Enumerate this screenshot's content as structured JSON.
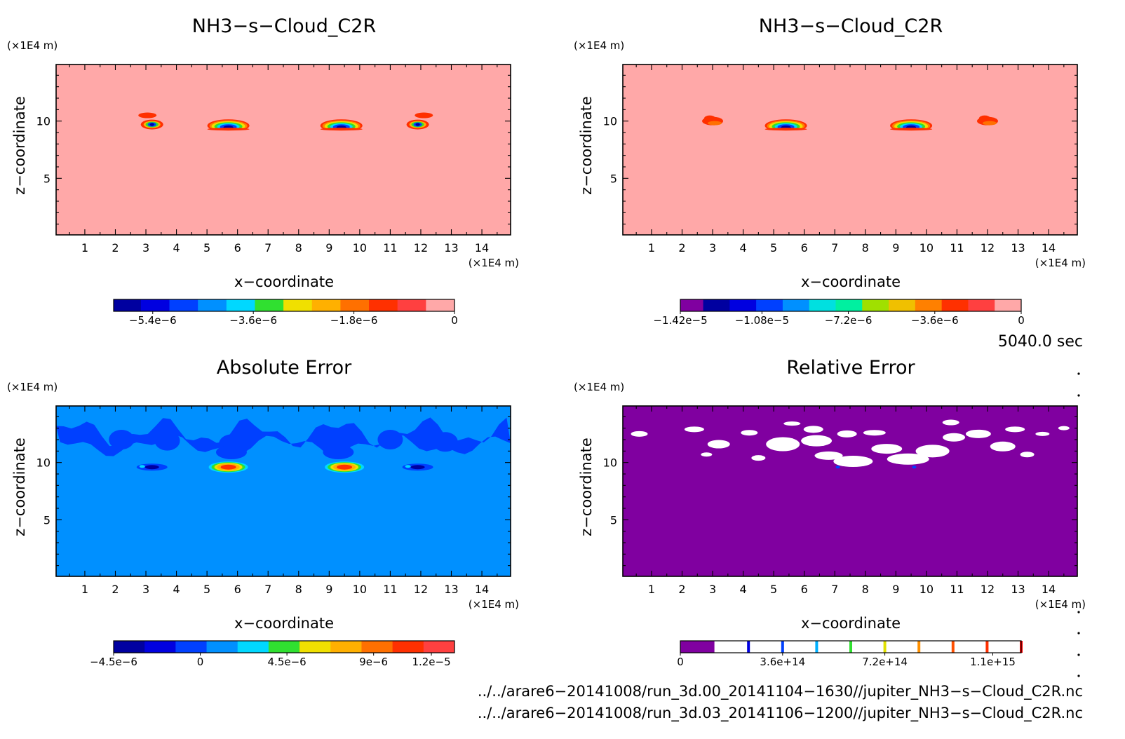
{
  "chart_data": [
    {
      "type": "heatmap",
      "title": "NH3−s−Cloud_C2R",
      "xlabel": "x−coordinate",
      "ylabel": "z−coordinate",
      "x_unit": "(×1E4 m)",
      "y_unit": "(×1E4 m)",
      "xlim": [
        0.06,
        14.94
      ],
      "ylim": [
        0.06,
        14.94
      ],
      "x_ticks": [
        "1",
        "2",
        "3",
        "4",
        "5",
        "6",
        "7",
        "8",
        "9",
        "10",
        "11",
        "12",
        "13",
        "14"
      ],
      "y_ticks": [
        "5",
        "10"
      ],
      "background_color": "#ffa8a8",
      "features": [
        {
          "kind": "mini",
          "x": 3.2,
          "z": 9.7
        },
        {
          "kind": "streak",
          "x": 3.05,
          "z": 10.5
        },
        {
          "kind": "dome",
          "x": 5.7,
          "z": 9.6
        },
        {
          "kind": "dome",
          "x": 9.4,
          "z": 9.6
        },
        {
          "kind": "mini",
          "x": 11.9,
          "z": 9.7
        },
        {
          "kind": "streak",
          "x": 12.1,
          "z": 10.5
        }
      ],
      "colorbar": {
        "colors": [
          "#0000a0",
          "#0000e0",
          "#0040ff",
          "#0090ff",
          "#00d8ff",
          "#30e030",
          "#f0e000",
          "#ffb000",
          "#ff7000",
          "#ff3000",
          "#ff4040",
          "#ffa8a8"
        ],
        "first_fraction": 0.08,
        "tick_labels": [
          "−5.4e−6",
          "−3.6e−6",
          "−1.8e−6",
          "0"
        ],
        "tick_values": [
          -5.4e-06,
          -3.6e-06,
          -1.8e-06,
          0
        ],
        "vmin": -6.1e-06,
        "vmax": 0
      }
    },
    {
      "type": "heatmap",
      "title": "NH3−s−Cloud_C2R",
      "xlabel": "x−coordinate",
      "ylabel": "z−coordinate",
      "x_unit": "(×1E4 m)",
      "y_unit": "(×1E4 m)",
      "xlim": [
        0.06,
        14.94
      ],
      "ylim": [
        0.06,
        14.94
      ],
      "x_ticks": [
        "1",
        "2",
        "3",
        "4",
        "5",
        "6",
        "7",
        "8",
        "9",
        "10",
        "11",
        "12",
        "13",
        "14"
      ],
      "y_ticks": [
        "5",
        "10"
      ],
      "background_color": "#ffa8a8",
      "features": [
        {
          "kind": "blob",
          "x": 3.0,
          "z": 10.0
        },
        {
          "kind": "dome",
          "x": 5.4,
          "z": 9.6
        },
        {
          "kind": "dome",
          "x": 9.5,
          "z": 9.6
        },
        {
          "kind": "blob",
          "x": 12.0,
          "z": 10.0
        }
      ],
      "colorbar": {
        "colors": [
          "#8000a0",
          "#0000a0",
          "#0000e0",
          "#0040ff",
          "#0090ff",
          "#00e0e0",
          "#00f0a0",
          "#a0e000",
          "#f0c000",
          "#ff8000",
          "#ff3000",
          "#ff4040",
          "#ffa8a8"
        ],
        "first_fraction": 0.067,
        "tick_labels": [
          "−1.42e−5",
          "−1.08e−5",
          "−7.2e−6",
          "−3.6e−6",
          "0"
        ],
        "tick_values": [
          -1.42e-05,
          -1.08e-05,
          -7.2e-06,
          -3.6e-06,
          0
        ],
        "vmin": -1.42e-05,
        "vmax": 0
      }
    },
    {
      "type": "heatmap",
      "title": "Absolute Error",
      "xlabel": "x−coordinate",
      "ylabel": "z−coordinate",
      "x_unit": "(×1E4 m)",
      "y_unit": "(×1E4 m)",
      "xlim": [
        0.06,
        14.94
      ],
      "ylim": [
        0.06,
        14.94
      ],
      "x_ticks": [
        "1",
        "2",
        "3",
        "4",
        "5",
        "6",
        "7",
        "8",
        "9",
        "10",
        "11",
        "12",
        "13",
        "14"
      ],
      "y_ticks": [
        "5",
        "10"
      ],
      "background_color": "#0090ff",
      "features": [
        {
          "kind": "band",
          "z": 12.6
        },
        {
          "kind": "dip",
          "x": 3.2,
          "z": 9.6
        },
        {
          "kind": "core",
          "x": 5.7,
          "z": 9.6
        },
        {
          "kind": "core",
          "x": 9.5,
          "z": 9.6
        },
        {
          "kind": "dip",
          "x": 11.9,
          "z": 9.6
        }
      ],
      "colorbar": {
        "colors": [
          "#0000a0",
          "#0000e0",
          "#0040ff",
          "#0090ff",
          "#00d8ff",
          "#30e030",
          "#f0e000",
          "#ffb000",
          "#ff7000",
          "#ff3000",
          "#ff4040"
        ],
        "first_fraction": 0.0,
        "tick_labels": [
          "−4.5e−6",
          "0",
          "4.5e−6",
          "9e−6",
          "1.2e−5"
        ],
        "tick_values": [
          -4.5e-06,
          0,
          4.5e-06,
          9e-06,
          1.2e-05
        ],
        "vmin": -4.5e-06,
        "vmax": 1.32e-05
      }
    },
    {
      "type": "heatmap",
      "title": "Relative Error",
      "xlabel": "x−coordinate",
      "ylabel": "z−coordinate",
      "x_unit": "(×1E4 m)",
      "y_unit": "(×1E4 m)",
      "xlim": [
        0.06,
        14.94
      ],
      "ylim": [
        0.06,
        14.94
      ],
      "x_ticks": [
        "1",
        "2",
        "3",
        "4",
        "5",
        "6",
        "7",
        "8",
        "9",
        "10",
        "11",
        "12",
        "13",
        "14"
      ],
      "y_ticks": [
        "5",
        "10"
      ],
      "background_color": "#8000a0",
      "features": [
        {
          "kind": "white-patches",
          "z": 11.8
        }
      ],
      "colorbar": {
        "style": "lines",
        "base_color": "#8000a0",
        "line_colors": [
          "#0000e0",
          "#0040ff",
          "#00b0ff",
          "#30e030",
          "#e0e000",
          "#ff9000",
          "#ff5000",
          "#ff3000",
          "#ff0000"
        ],
        "tick_labels": [
          "0",
          "3.6e+14",
          "7.2e+14",
          "1.1e+15"
        ],
        "tick_values": [
          0,
          360000000000000.0,
          720000000000000.0,
          1100000000000000.0
        ],
        "vmin": 0,
        "vmax": 1200000000000000.0
      }
    }
  ],
  "time_label": "5040.0 sec",
  "file_paths": [
    "../../arare6−20141008/run_3d.00_20141104−1630//jupiter_NH3−s−Cloud_C2R.nc",
    "../../arare6−20141008/run_3d.03_20141106−1200//jupiter_NH3−s−Cloud_C2R.nc"
  ]
}
